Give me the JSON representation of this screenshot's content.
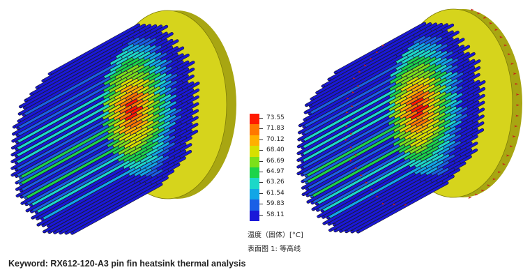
{
  "legend": {
    "values": [
      "73.55",
      "71.83",
      "70.12",
      "68.40",
      "66.69",
      "64.97",
      "63.26",
      "61.54",
      "59.83",
      "58.11"
    ],
    "colors": [
      "#ff1a00",
      "#ff7800",
      "#ffb000",
      "#d8e000",
      "#7ce01a",
      "#1cd44a",
      "#1cd8c8",
      "#12a6e6",
      "#1a5fe6",
      "#1a18d8"
    ],
    "unit_label": "温度（固体）[°C]",
    "plot_label": "表面图 1: 等高线"
  },
  "caption": "Keyword: RX612-120-A3 pin fin heatsink thermal analysis",
  "colors": {
    "base_plate": "#d6d41c",
    "base_plate_shadow": "#a8a612",
    "flow_arrow": "#c8201a"
  }
}
